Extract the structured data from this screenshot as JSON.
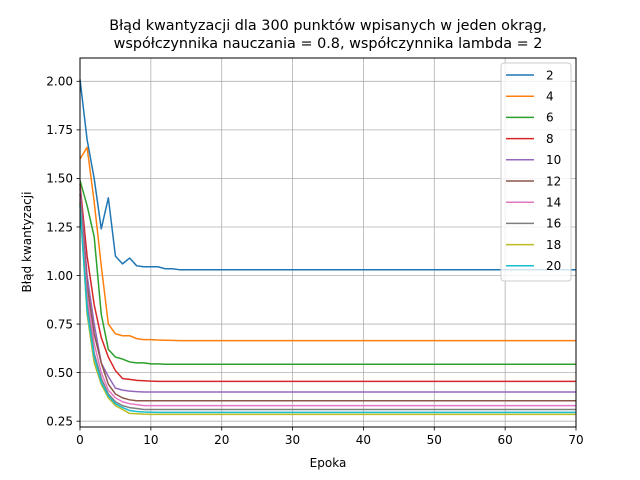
{
  "chart_data": {
    "type": "line",
    "title_line1": "Błąd kwantyzacji dla 300 punktów wpisanych w jeden okrąg,",
    "title_line2": "współczynnika nauczania = 0.8, współczynnika lambda = 2",
    "xlabel": "Epoka",
    "ylabel": "Błąd kwantyzacji",
    "xlim": [
      0,
      70
    ],
    "ylim": [
      0.22,
      2.12
    ],
    "xticks": [
      0,
      10,
      20,
      30,
      40,
      50,
      60,
      70
    ],
    "yticks": [
      0.25,
      0.5,
      0.75,
      1.0,
      1.25,
      1.5,
      1.75,
      2.0
    ],
    "ytick_labels": [
      "0.25",
      "0.50",
      "0.75",
      "1.00",
      "1.25",
      "1.50",
      "1.75",
      "2.00"
    ],
    "grid": true,
    "legend_position": "top-right",
    "x": [
      0,
      1,
      2,
      3,
      4,
      5,
      6,
      7,
      8,
      9,
      10,
      11,
      12,
      13,
      14,
      15,
      16,
      17,
      18,
      19,
      20,
      21,
      22,
      23,
      24,
      25,
      26,
      27,
      28,
      29,
      30,
      31,
      32,
      33,
      34,
      35,
      36,
      37,
      38,
      39,
      40,
      41,
      42,
      43,
      44,
      45,
      46,
      47,
      48,
      49,
      50,
      51,
      52,
      53,
      54,
      55,
      56,
      57,
      58,
      59,
      60,
      61,
      62,
      63,
      64,
      65,
      66,
      67,
      68,
      69,
      70
    ],
    "series": [
      {
        "name": "2",
        "color": "#1f77b4",
        "head": [
          2.01,
          1.7,
          1.5,
          1.24,
          1.4,
          1.1,
          1.06,
          1.09,
          1.05,
          1.045,
          1.045,
          1.045,
          1.035,
          1.035,
          1.03
        ],
        "final": 1.03
      },
      {
        "name": "4",
        "color": "#ff7f0e",
        "head": [
          1.6,
          1.66,
          1.38,
          1.05,
          0.75,
          0.7,
          0.69,
          0.69,
          0.675,
          0.67,
          0.67,
          0.668,
          0.667,
          0.666,
          0.665
        ],
        "final": 0.665
      },
      {
        "name": "6",
        "color": "#2ca02c",
        "head": [
          1.49,
          1.36,
          1.2,
          0.8,
          0.62,
          0.58,
          0.57,
          0.555,
          0.55,
          0.55,
          0.545,
          0.545,
          0.543,
          0.543,
          0.543
        ],
        "final": 0.543
      },
      {
        "name": "8",
        "color": "#d62728",
        "head": [
          1.47,
          1.1,
          0.85,
          0.68,
          0.58,
          0.51,
          0.47,
          0.465,
          0.46,
          0.458,
          0.456,
          0.455,
          0.455,
          0.455,
          0.455
        ],
        "final": 0.455
      },
      {
        "name": "10",
        "color": "#9467bd",
        "head": [
          1.45,
          1.0,
          0.75,
          0.55,
          0.48,
          0.42,
          0.41,
          0.405,
          0.402,
          0.4,
          0.4,
          0.4,
          0.4,
          0.4,
          0.4
        ],
        "final": 0.4
      },
      {
        "name": "12",
        "color": "#8c564b",
        "head": [
          1.42,
          0.95,
          0.7,
          0.55,
          0.44,
          0.39,
          0.37,
          0.36,
          0.355,
          0.355,
          0.355,
          0.355,
          0.355,
          0.355,
          0.355
        ],
        "final": 0.355
      },
      {
        "name": "14",
        "color": "#e377c2",
        "head": [
          1.4,
          0.9,
          0.65,
          0.5,
          0.41,
          0.37,
          0.35,
          0.34,
          0.335,
          0.33,
          0.33,
          0.33,
          0.33,
          0.33,
          0.33
        ],
        "final": 0.33
      },
      {
        "name": "16",
        "color": "#7f7f7f",
        "head": [
          1.38,
          0.85,
          0.6,
          0.47,
          0.39,
          0.35,
          0.33,
          0.32,
          0.315,
          0.31,
          0.31,
          0.31,
          0.31,
          0.31,
          0.31
        ],
        "final": 0.31
      },
      {
        "name": "18",
        "color": "#bcbd22",
        "head": [
          1.37,
          0.8,
          0.55,
          0.44,
          0.37,
          0.33,
          0.31,
          0.29,
          0.288,
          0.286,
          0.285,
          0.285,
          0.285,
          0.285,
          0.285
        ],
        "final": 0.285
      },
      {
        "name": "20",
        "color": "#17becf",
        "head": [
          1.36,
          0.82,
          0.58,
          0.45,
          0.38,
          0.34,
          0.32,
          0.305,
          0.3,
          0.297,
          0.296,
          0.295,
          0.295,
          0.295,
          0.295
        ],
        "final": 0.295
      }
    ]
  }
}
